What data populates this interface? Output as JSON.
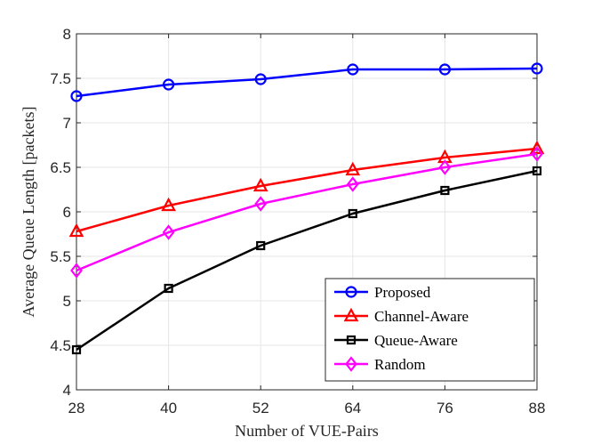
{
  "chart_data": {
    "type": "line",
    "title": "",
    "xlabel": "Number of VUE-Pairs",
    "ylabel": "Average Queue Length [packets]",
    "x": [
      28,
      40,
      52,
      64,
      76,
      88
    ],
    "xlim": [
      28,
      88
    ],
    "ylim": [
      4,
      8
    ],
    "xticks": [
      "28",
      "40",
      "52",
      "64",
      "76",
      "88"
    ],
    "yticks": [
      "4",
      "4.5",
      "5",
      "5.5",
      "6",
      "6.5",
      "7",
      "7.5",
      "8"
    ],
    "grid": true,
    "legend_position": "bottom-right",
    "series": [
      {
        "name": "Proposed",
        "color": "#0000ff",
        "marker": "circle",
        "values": [
          7.3,
          7.43,
          7.49,
          7.6,
          7.6,
          7.61
        ]
      },
      {
        "name": "Channel-Aware",
        "color": "#ff0000",
        "marker": "triangle",
        "values": [
          5.78,
          6.07,
          6.29,
          6.47,
          6.61,
          6.71
        ]
      },
      {
        "name": "Queue-Aware",
        "color": "#000000",
        "marker": "square",
        "values": [
          4.45,
          5.14,
          5.62,
          5.98,
          6.24,
          6.46
        ]
      },
      {
        "name": "Random",
        "color": "#ff00ff",
        "marker": "diamond",
        "values": [
          5.34,
          5.77,
          6.09,
          6.31,
          6.5,
          6.65
        ]
      }
    ]
  }
}
